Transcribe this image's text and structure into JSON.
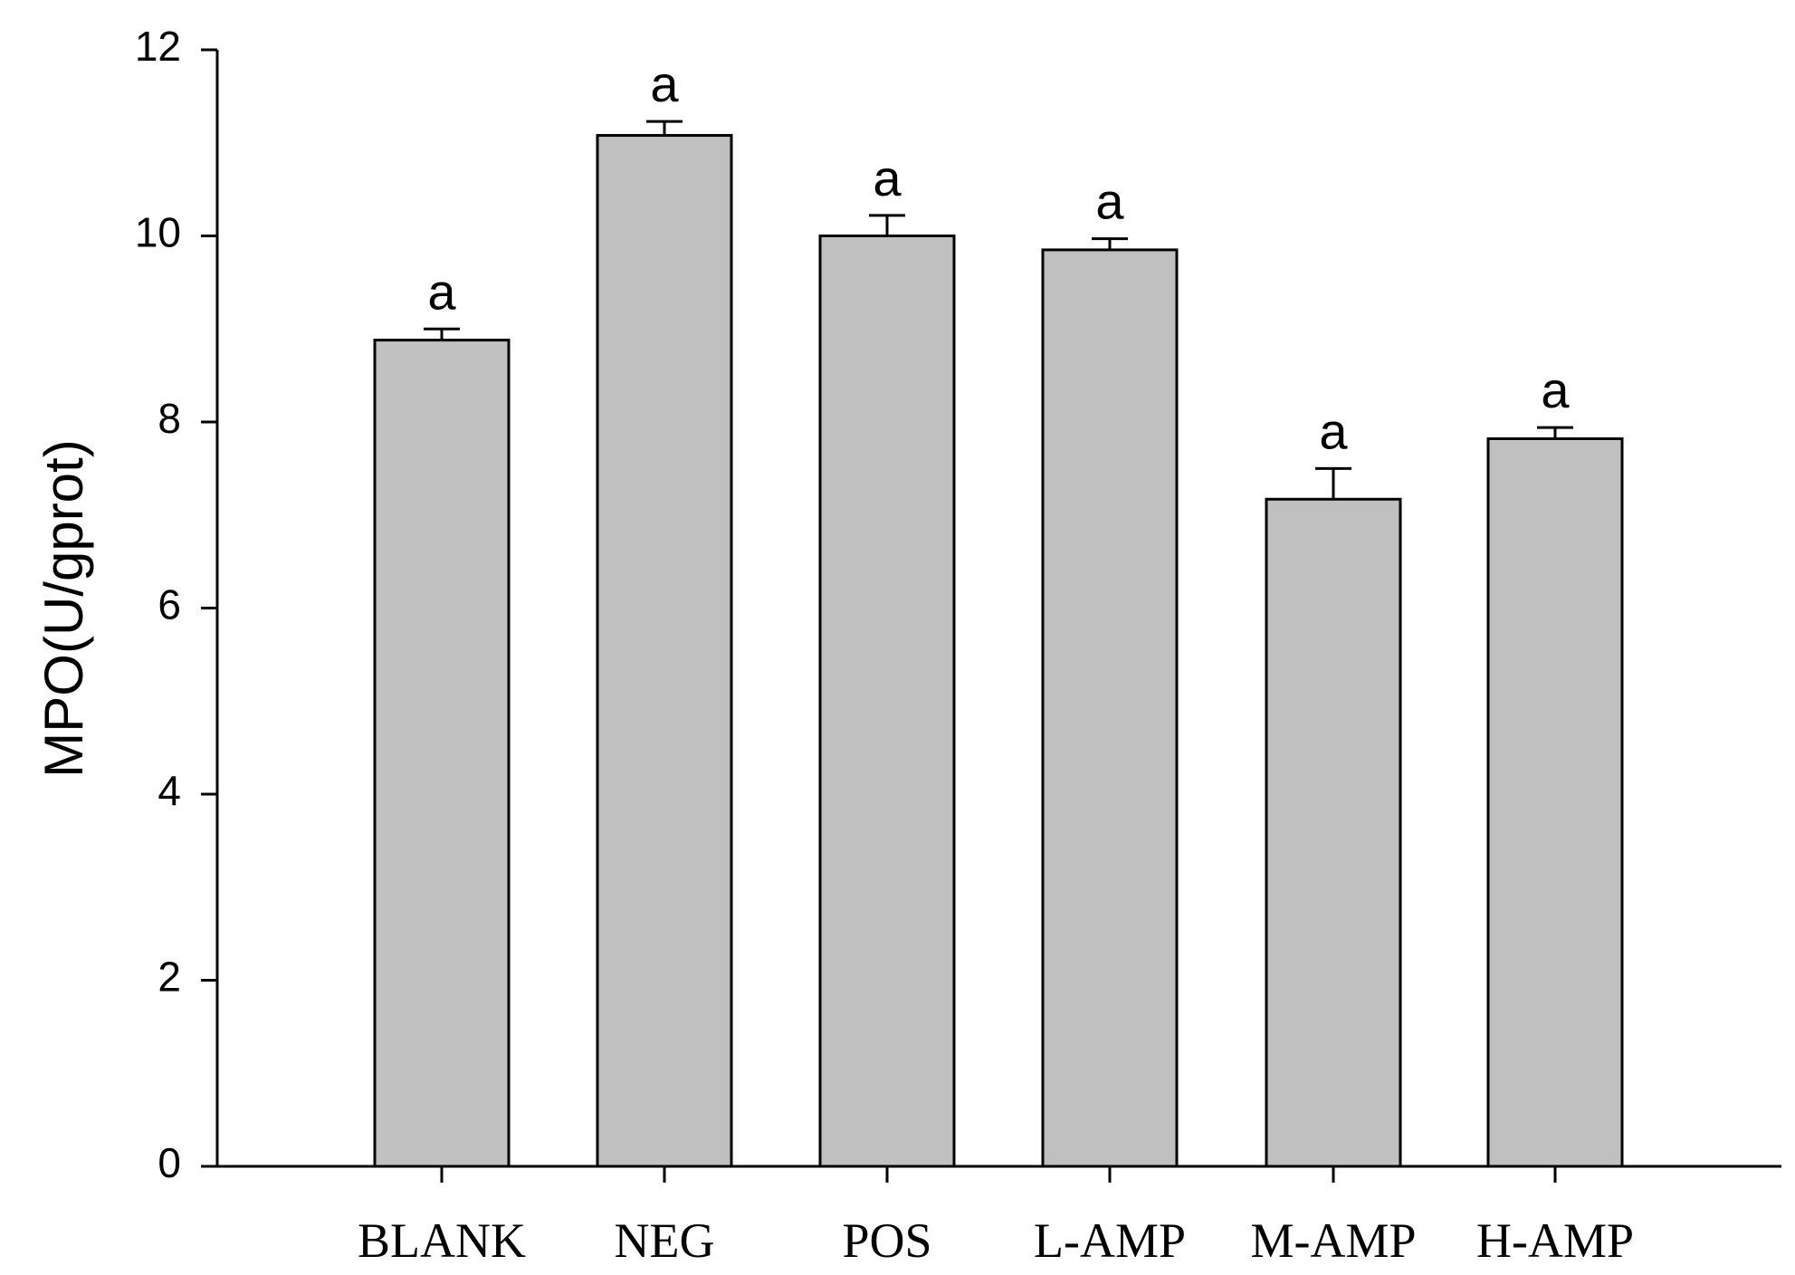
{
  "chart_data": {
    "type": "bar",
    "categories": [
      "BLANK",
      "NEG",
      "POS",
      "L-AMP",
      "M-AMP",
      "H-AMP"
    ],
    "values": [
      8.88,
      11.08,
      10.0,
      9.85,
      7.17,
      7.82
    ],
    "error": [
      0.12,
      0.15,
      0.22,
      0.12,
      0.33,
      0.12
    ],
    "annotations": [
      "a",
      "a",
      "a",
      "a",
      "a",
      "a"
    ],
    "ylabel": "MPO(U/gprot)",
    "xlabel": "",
    "title": "",
    "ylim": [
      0,
      12
    ],
    "yticks": [
      "0",
      "2",
      "4",
      "6",
      "8",
      "10",
      "12"
    ],
    "bar_color": "#c0c0c0",
    "edge_color": "#000000",
    "grid": false,
    "legend": "none"
  }
}
